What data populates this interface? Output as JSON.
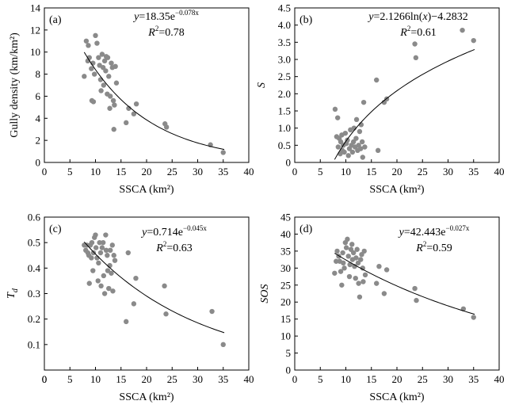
{
  "chart_data": [
    {
      "id": "a",
      "type": "scatter",
      "panel_label": "(a)",
      "xlabel": "SSCA (km²)",
      "ylabel": "Gully density (km/km²)",
      "xlim": [
        0,
        40
      ],
      "ylim": [
        0,
        14
      ],
      "xticks": [
        0,
        5,
        10,
        15,
        20,
        25,
        30,
        35,
        40
      ],
      "yticks": [
        0,
        2,
        4,
        6,
        8,
        10,
        12,
        14
      ],
      "ylog": false,
      "grid": false,
      "equation": {
        "pre": "y",
        "main": "=18.35e",
        "sup": "−0.078x"
      },
      "r2": {
        "text": "=0.78"
      },
      "fit": {
        "form": "exp",
        "a": 18.35,
        "b": -0.078,
        "x_range": [
          7.8,
          35.2
        ]
      },
      "points": [
        [
          7.8,
          7.8
        ],
        [
          8.2,
          11.0
        ],
        [
          8.5,
          9.2
        ],
        [
          8.6,
          10.6
        ],
        [
          8.8,
          9.5
        ],
        [
          9.2,
          8.5
        ],
        [
          9.3,
          5.6
        ],
        [
          9.5,
          9.0
        ],
        [
          9.6,
          5.5
        ],
        [
          9.8,
          8.0
        ],
        [
          10.0,
          11.5
        ],
        [
          10.3,
          10.8
        ],
        [
          10.6,
          9.5
        ],
        [
          10.8,
          8.8
        ],
        [
          11.0,
          7.5
        ],
        [
          11.1,
          6.5
        ],
        [
          11.3,
          9.8
        ],
        [
          11.5,
          8.6
        ],
        [
          11.6,
          7.0
        ],
        [
          11.8,
          9.2
        ],
        [
          12.0,
          8.3
        ],
        [
          12.1,
          9.6
        ],
        [
          12.3,
          6.2
        ],
        [
          12.4,
          9.5
        ],
        [
          12.6,
          7.8
        ],
        [
          12.8,
          4.9
        ],
        [
          12.9,
          6.0
        ],
        [
          13.1,
          9.0
        ],
        [
          13.3,
          8.6
        ],
        [
          13.5,
          5.6
        ],
        [
          13.6,
          3.0
        ],
        [
          13.7,
          5.2
        ],
        [
          13.9,
          8.7
        ],
        [
          14.1,
          7.2
        ],
        [
          16.0,
          3.6
        ],
        [
          16.5,
          4.9
        ],
        [
          17.5,
          4.4
        ],
        [
          18.0,
          5.3
        ],
        [
          23.6,
          3.5
        ],
        [
          23.9,
          3.2
        ],
        [
          32.5,
          1.6
        ],
        [
          35.0,
          0.9
        ]
      ]
    },
    {
      "id": "b",
      "type": "scatter",
      "panel_label": "(b)",
      "xlabel": "SSCA (km²)",
      "ylabel": "S",
      "xlim": [
        0,
        40
      ],
      "ylim": [
        0,
        4.5
      ],
      "xticks": [
        0,
        5,
        10,
        15,
        20,
        25,
        30,
        35,
        40
      ],
      "yticks": [
        0,
        0.5,
        1.0,
        1.5,
        2.0,
        2.5,
        3.0,
        3.5,
        4.0,
        4.5
      ],
      "ytick_labels": [
        "0",
        "0.5",
        "1.0",
        "1.5",
        "2.0",
        "2.5",
        "3.0",
        "3.5",
        "4.0",
        "4.5"
      ],
      "equation": {
        "pre": "y",
        "main": "=2.1266ln(",
        "var": "x",
        "post": ")−4.2832"
      },
      "r2": {
        "text": "=0.61"
      },
      "fit": {
        "form": "log",
        "a": 2.1266,
        "b": -4.2832,
        "x_range": [
          7.8,
          35.2
        ]
      },
      "points": [
        [
          7.9,
          1.55
        ],
        [
          8.2,
          0.75
        ],
        [
          8.4,
          1.3
        ],
        [
          8.5,
          0.45
        ],
        [
          8.7,
          0.7
        ],
        [
          8.9,
          0.25
        ],
        [
          9.0,
          0.6
        ],
        [
          9.2,
          0.8
        ],
        [
          9.3,
          0.35
        ],
        [
          9.5,
          0.5
        ],
        [
          9.7,
          0.3
        ],
        [
          9.9,
          0.85
        ],
        [
          10.1,
          0.55
        ],
        [
          10.3,
          0.65
        ],
        [
          10.5,
          0.2
        ],
        [
          10.7,
          0.4
        ],
        [
          10.9,
          0.95
        ],
        [
          11.1,
          0.5
        ],
        [
          11.3,
          0.3
        ],
        [
          11.5,
          0.6
        ],
        [
          11.6,
          1.0
        ],
        [
          11.8,
          0.45
        ],
        [
          12.0,
          0.7
        ],
        [
          12.1,
          1.25
        ],
        [
          12.3,
          0.35
        ],
        [
          12.5,
          0.5
        ],
        [
          12.7,
          0.9
        ],
        [
          12.9,
          0.4
        ],
        [
          13.0,
          1.1
        ],
        [
          13.2,
          0.6
        ],
        [
          13.3,
          0.15
        ],
        [
          13.5,
          1.75
        ],
        [
          13.7,
          0.45
        ],
        [
          16.0,
          2.4
        ],
        [
          16.3,
          0.35
        ],
        [
          17.5,
          1.75
        ],
        [
          18.0,
          1.85
        ],
        [
          23.5,
          3.45
        ],
        [
          23.7,
          3.05
        ],
        [
          32.8,
          3.85
        ],
        [
          35.0,
          3.55
        ]
      ]
    },
    {
      "id": "c",
      "type": "scatter",
      "panel_label": "(c)",
      "xlabel": "SSCA (km²)",
      "ylabel": "Td",
      "ylabel_main": "T",
      "ylabel_sub": "d",
      "xlim": [
        0,
        40
      ],
      "ylim": [
        0,
        0.6
      ],
      "xticks": [
        0,
        5,
        10,
        15,
        20,
        25,
        30,
        35,
        40
      ],
      "yticks": [
        0.1,
        0.2,
        0.3,
        0.4,
        0.5,
        0.6
      ],
      "ytick_labels": [
        "0.1",
        "0.2",
        "0.3",
        "0.4",
        "0.5",
        "0.6"
      ],
      "x0_label": "0",
      "equation": {
        "pre": "y",
        "main": "=0.714e",
        "sup": "−0.045x"
      },
      "r2": {
        "text": "=0.63"
      },
      "fit": {
        "form": "exp",
        "a": 0.714,
        "b": -0.045,
        "x_range": [
          7.8,
          35.2
        ]
      },
      "points": [
        [
          7.8,
          0.49
        ],
        [
          8.1,
          0.47
        ],
        [
          8.3,
          0.49
        ],
        [
          8.5,
          0.46
        ],
        [
          8.7,
          0.45
        ],
        [
          8.8,
          0.34
        ],
        [
          9.0,
          0.49
        ],
        [
          9.2,
          0.44
        ],
        [
          9.3,
          0.5
        ],
        [
          9.5,
          0.39
        ],
        [
          9.6,
          0.46
        ],
        [
          9.8,
          0.52
        ],
        [
          10.0,
          0.53
        ],
        [
          10.1,
          0.48
        ],
        [
          10.3,
          0.44
        ],
        [
          10.5,
          0.35
        ],
        [
          10.6,
          0.42
        ],
        [
          10.8,
          0.5
        ],
        [
          11.0,
          0.46
        ],
        [
          11.1,
          0.33
        ],
        [
          11.3,
          0.48
        ],
        [
          11.5,
          0.5
        ],
        [
          11.6,
          0.37
        ],
        [
          11.8,
          0.3
        ],
        [
          12.0,
          0.53
        ],
        [
          12.1,
          0.47
        ],
        [
          12.3,
          0.45
        ],
        [
          12.4,
          0.39
        ],
        [
          12.6,
          0.32
        ],
        [
          12.8,
          0.41
        ],
        [
          12.9,
          0.47
        ],
        [
          13.1,
          0.38
        ],
        [
          13.3,
          0.49
        ],
        [
          13.4,
          0.31
        ],
        [
          13.6,
          0.45
        ],
        [
          13.8,
          0.43
        ],
        [
          16.0,
          0.19
        ],
        [
          16.4,
          0.46
        ],
        [
          17.5,
          0.26
        ],
        [
          17.9,
          0.36
        ],
        [
          23.5,
          0.33
        ],
        [
          23.8,
          0.22
        ],
        [
          32.8,
          0.23
        ],
        [
          35.0,
          0.1
        ]
      ]
    },
    {
      "id": "d",
      "type": "scatter",
      "panel_label": "(d)",
      "xlabel": "SSCA (km²)",
      "ylabel": "SOS",
      "xlim": [
        0,
        40
      ],
      "ylim": [
        0,
        45
      ],
      "xticks": [
        0,
        5,
        10,
        15,
        20,
        25,
        30,
        35,
        40
      ],
      "yticks": [
        0,
        5,
        10,
        15,
        20,
        25,
        30,
        35,
        40,
        45
      ],
      "equation": {
        "pre": "y",
        "main": "=42.443e",
        "sup": "−0.027x"
      },
      "r2": {
        "text": "=0.59"
      },
      "fit": {
        "form": "exp",
        "a": 42.443,
        "b": -0.027,
        "x_range": [
          7.8,
          35.2
        ]
      },
      "points": [
        [
          7.8,
          28.5
        ],
        [
          8.1,
          32.0
        ],
        [
          8.3,
          35.0
        ],
        [
          8.6,
          33.5
        ],
        [
          8.8,
          32.0
        ],
        [
          9.0,
          29.0
        ],
        [
          9.2,
          25.0
        ],
        [
          9.4,
          34.5
        ],
        [
          9.5,
          31.5
        ],
        [
          9.7,
          30.0
        ],
        [
          9.9,
          37.5
        ],
        [
          10.1,
          36.0
        ],
        [
          10.3,
          38.5
        ],
        [
          10.5,
          33.5
        ],
        [
          10.7,
          27.5
        ],
        [
          10.8,
          31.0
        ],
        [
          11.0,
          35.5
        ],
        [
          11.2,
          37.0
        ],
        [
          11.3,
          32.5
        ],
        [
          11.5,
          34.5
        ],
        [
          11.7,
          30.5
        ],
        [
          11.9,
          27.0
        ],
        [
          12.0,
          33.0
        ],
        [
          12.2,
          35.5
        ],
        [
          12.4,
          31.5
        ],
        [
          12.5,
          25.5
        ],
        [
          12.7,
          21.5
        ],
        [
          12.9,
          32.5
        ],
        [
          13.1,
          34.0
        ],
        [
          13.3,
          30.0
        ],
        [
          13.4,
          26.0
        ],
        [
          13.6,
          35.0
        ],
        [
          13.8,
          28.0
        ],
        [
          16.0,
          25.5
        ],
        [
          16.5,
          30.5
        ],
        [
          17.5,
          22.5
        ],
        [
          18.0,
          29.5
        ],
        [
          23.5,
          24.0
        ],
        [
          23.8,
          20.5
        ],
        [
          33.0,
          18.0
        ],
        [
          35.0,
          15.5
        ]
      ]
    }
  ]
}
